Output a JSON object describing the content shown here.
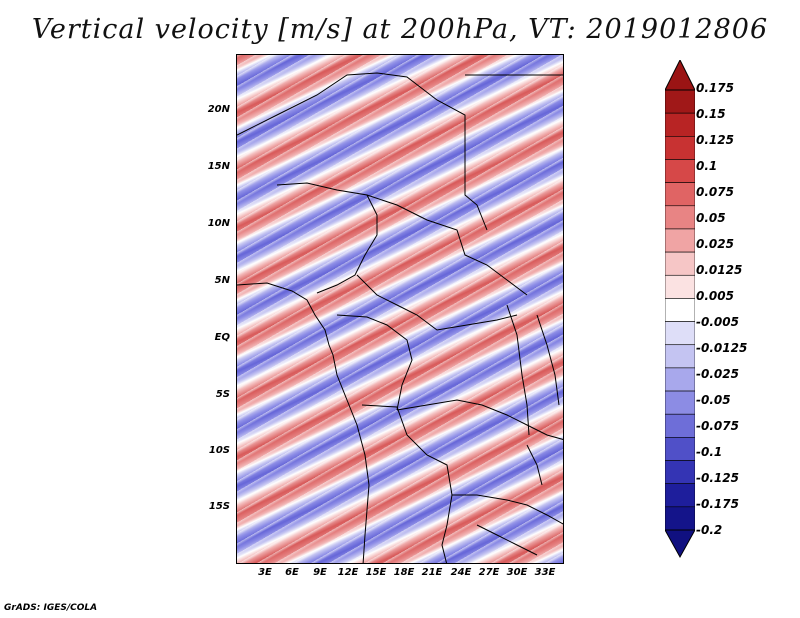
{
  "title": "Vertical velocity [m/s] at 200hPa, VT: 2019012806",
  "map": {
    "region": "Central & Southern Africa",
    "lat_ticks": [
      "20N",
      "15N",
      "10N",
      "5N",
      "EQ",
      "5S",
      "10S",
      "15S"
    ],
    "lon_ticks": [
      "3E",
      "6E",
      "9E",
      "12E",
      "15E",
      "18E",
      "21E",
      "24E",
      "27E",
      "30E",
      "33E"
    ]
  },
  "colorbar": {
    "levels": [
      "0.175",
      "0.15",
      "0.125",
      "0.1",
      "0.075",
      "0.05",
      "0.025",
      "0.0125",
      "0.005",
      "-0.005",
      "-0.0125",
      "-0.025",
      "-0.05",
      "-0.075",
      "-0.1",
      "-0.125",
      "-0.175",
      "-0.2"
    ],
    "colors": [
      "#a01818",
      "#b82424",
      "#c83232",
      "#d64848",
      "#e06464",
      "#e88484",
      "#f0a4a4",
      "#f6c6c6",
      "#fbe2e2",
      "#ffffff",
      "#dedef8",
      "#c4c4f2",
      "#a8a8ec",
      "#8c8ce4",
      "#6e6ed8",
      "#5050c8",
      "#3434b4",
      "#1e1e9c",
      "#14148a"
    ],
    "top_color": "#9a1414",
    "bottom_color": "#101080"
  },
  "footer": "GrADS: IGES/COLA"
}
